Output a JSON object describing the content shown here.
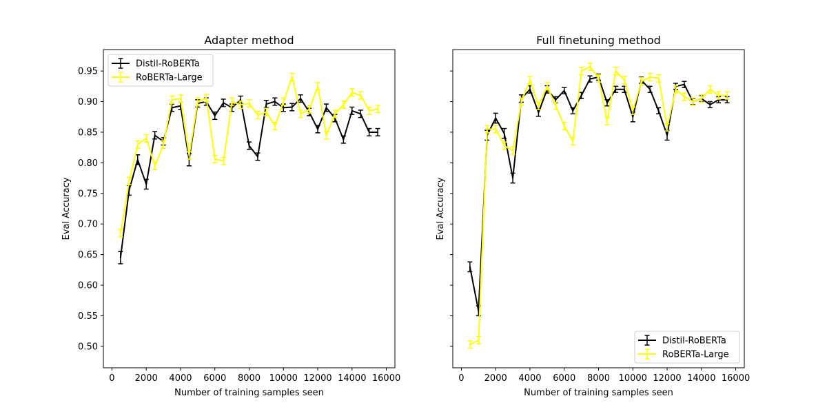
{
  "colors": {
    "distil": "#000000",
    "large": "#ffff00",
    "axes": "#000000",
    "background": "#ffffff"
  },
  "chart_data": [
    {
      "type": "line",
      "title": "Adapter method",
      "xlabel": "Number of training samples seen",
      "ylabel": "Eval Accuracy",
      "xlim": [
        -500,
        16500
      ],
      "ylim": [
        0.465,
        0.985
      ],
      "xticks": [
        0,
        2000,
        4000,
        6000,
        8000,
        10000,
        12000,
        14000,
        16000
      ],
      "xtick_labels": [
        "0",
        "2000",
        "4000",
        "6000",
        "8000",
        "10000",
        "12000",
        "14000",
        "16000"
      ],
      "yticks": [
        0.5,
        0.55,
        0.6,
        0.65,
        0.7,
        0.75,
        0.8,
        0.85,
        0.9,
        0.95
      ],
      "ytick_labels": [
        "0.50",
        "0.55",
        "0.60",
        "0.65",
        "0.70",
        "0.75",
        "0.80",
        "0.85",
        "0.90",
        "0.95"
      ],
      "error_bars": true,
      "grid": false,
      "legend": {
        "position": "upper-left",
        "entries": [
          "Distil-RoBERTa",
          "RoBERTa-Large"
        ]
      },
      "x": [
        500,
        1000,
        1500,
        2000,
        2500,
        3000,
        3500,
        4000,
        4500,
        5000,
        5500,
        6000,
        6500,
        7000,
        7500,
        8000,
        8500,
        9000,
        9500,
        10000,
        10500,
        11000,
        11500,
        12000,
        12500,
        13000,
        13500,
        14000,
        14500,
        15000,
        15500
      ],
      "series": [
        {
          "name": "Distil-RoBERTa",
          "color": "#000000",
          "values": [
            0.645,
            0.755,
            0.805,
            0.765,
            0.845,
            0.835,
            0.89,
            0.893,
            0.805,
            0.897,
            0.9,
            0.877,
            0.898,
            0.89,
            0.903,
            0.828,
            0.81,
            0.896,
            0.9,
            0.89,
            0.891,
            0.905,
            0.883,
            0.855,
            0.89,
            0.873,
            0.838,
            0.885,
            0.88,
            0.85,
            0.85
          ],
          "errors": [
            0.01,
            0.008,
            0.008,
            0.008,
            0.006,
            0.006,
            0.006,
            0.006,
            0.01,
            0.006,
            0.006,
            0.006,
            0.006,
            0.006,
            0.006,
            0.006,
            0.006,
            0.006,
            0.006,
            0.006,
            0.006,
            0.006,
            0.006,
            0.006,
            0.006,
            0.006,
            0.006,
            0.006,
            0.006,
            0.006,
            0.006
          ]
        },
        {
          "name": "RoBERTa-Large",
          "color": "#ffff00",
          "values": [
            0.685,
            0.77,
            0.83,
            0.84,
            0.795,
            0.83,
            0.903,
            0.905,
            0.812,
            0.9,
            0.906,
            0.806,
            0.803,
            0.9,
            0.895,
            0.897,
            0.878,
            0.883,
            0.86,
            0.9,
            0.94,
            0.88,
            0.887,
            0.925,
            0.845,
            0.88,
            0.895,
            0.915,
            0.91,
            0.885,
            0.888
          ]
        }
      ]
    },
    {
      "type": "line",
      "title": "Full finetuning method",
      "xlabel": "Number of training samples seen",
      "ylabel": "Eval Accuracy",
      "xlim": [
        -500,
        16500
      ],
      "ylim": [
        0.465,
        0.985
      ],
      "xticks": [
        0,
        2000,
        4000,
        6000,
        8000,
        10000,
        12000,
        14000,
        16000
      ],
      "xtick_labels": [
        "0",
        "2000",
        "4000",
        "6000",
        "8000",
        "10000",
        "12000",
        "14000",
        "16000"
      ],
      "yticks": [
        0.5,
        0.55,
        0.6,
        0.65,
        0.7,
        0.75,
        0.8,
        0.85,
        0.9,
        0.95
      ],
      "ytick_labels": [],
      "error_bars": true,
      "grid": false,
      "legend": {
        "position": "lower-right",
        "entries": [
          "Distil-RoBERTa",
          "RoBERTa-Large"
        ]
      },
      "x": [
        500,
        1000,
        1500,
        2000,
        2500,
        3000,
        3500,
        4000,
        4500,
        5000,
        5500,
        6000,
        6500,
        7000,
        7500,
        8000,
        8500,
        9000,
        9500,
        10000,
        10500,
        11000,
        11500,
        12000,
        12500,
        13000,
        13500,
        14000,
        14500,
        15000,
        15500
      ],
      "series": [
        {
          "name": "Distil-RoBERTa",
          "color": "#000000",
          "values": [
            0.63,
            0.558,
            0.845,
            0.873,
            0.848,
            0.775,
            0.905,
            0.92,
            0.882,
            0.92,
            0.903,
            0.918,
            0.885,
            0.91,
            0.937,
            0.94,
            0.898,
            0.92,
            0.92,
            0.875,
            0.935,
            0.92,
            0.885,
            0.845,
            0.925,
            0.928,
            0.9,
            0.905,
            0.895,
            0.903,
            0.903
          ],
          "errors": [
            0.008,
            0.008,
            0.008,
            0.008,
            0.008,
            0.008,
            0.006,
            0.006,
            0.006,
            0.006,
            0.005,
            0.005,
            0.005,
            0.005,
            0.005,
            0.005,
            0.005,
            0.005,
            0.005,
            0.008,
            0.005,
            0.005,
            0.005,
            0.008,
            0.005,
            0.005,
            0.005,
            0.005,
            0.005,
            0.005,
            0.005
          ]
        },
        {
          "name": "RoBERTa-Large",
          "color": "#ffff00",
          "values": [
            0.503,
            0.51,
            0.855,
            0.855,
            0.828,
            0.82,
            0.9,
            0.935,
            0.893,
            0.925,
            0.893,
            0.86,
            0.835,
            0.95,
            0.957,
            0.938,
            0.868,
            0.95,
            0.935,
            0.885,
            0.933,
            0.94,
            0.938,
            0.858,
            0.92,
            0.908,
            0.9,
            0.905,
            0.92,
            0.91,
            0.91
          ]
        }
      ]
    }
  ]
}
